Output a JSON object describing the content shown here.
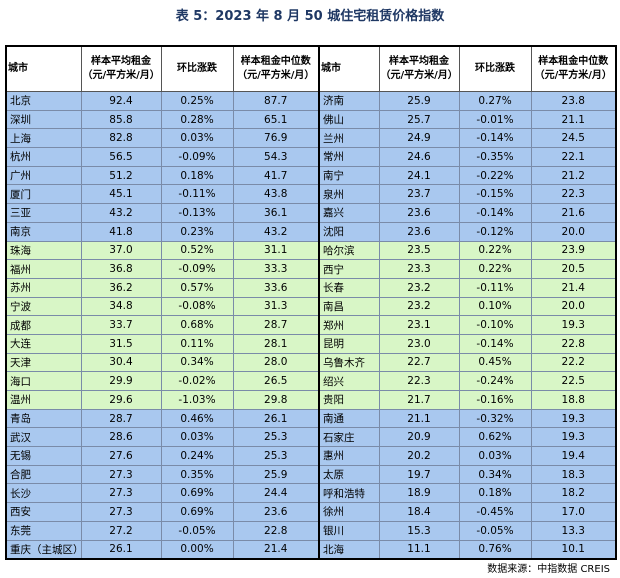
{
  "title": "表 5：2023 年 8 月 50 城住宅租赁价格指数",
  "table": {
    "header": [
      "城市",
      {
        "label": "样本平均租金",
        "unit": "（元/平方米/月）"
      },
      "环比涨跌",
      {
        "label": "样本租金中位数",
        "unit": "（元/平方米/月）"
      },
      "城市",
      {
        "label": "样本平均租金",
        "unit": "（元/平方米/月）"
      },
      "环比涨跌",
      {
        "label": "样本租金中位数",
        "unit": "（元/平方米/月）"
      }
    ],
    "rows": [
      [
        "北京",
        "92.4",
        "0.25%",
        "87.7",
        "济南",
        "25.9",
        "0.27%",
        "23.8"
      ],
      [
        "深圳",
        "85.8",
        "0.28%",
        "65.1",
        "佛山",
        "25.7",
        "-0.01%",
        "21.1"
      ],
      [
        "上海",
        "82.8",
        "0.03%",
        "76.9",
        "兰州",
        "24.9",
        "-0.14%",
        "24.5"
      ],
      [
        "杭州",
        "56.5",
        "-0.09%",
        "54.3",
        "常州",
        "24.6",
        "-0.35%",
        "22.1"
      ],
      [
        "广州",
        "51.2",
        "0.18%",
        "41.7",
        "南宁",
        "24.1",
        "-0.22%",
        "21.2"
      ],
      [
        "厦门",
        "45.1",
        "-0.11%",
        "43.8",
        "泉州",
        "23.7",
        "-0.15%",
        "22.3"
      ],
      [
        "三亚",
        "43.2",
        "-0.13%",
        "36.1",
        "嘉兴",
        "23.6",
        "-0.14%",
        "21.6"
      ],
      [
        "南京",
        "41.8",
        "0.23%",
        "43.2",
        "沈阳",
        "23.6",
        "-0.12%",
        "20.0"
      ],
      [
        "珠海",
        "37.0",
        "0.52%",
        "31.1",
        "哈尔滨",
        "23.5",
        "0.22%",
        "23.9"
      ],
      [
        "福州",
        "36.8",
        "-0.09%",
        "33.3",
        "西宁",
        "23.3",
        "0.22%",
        "20.5"
      ],
      [
        "苏州",
        "36.2",
        "0.57%",
        "33.6",
        "长春",
        "23.2",
        "-0.11%",
        "21.4"
      ],
      [
        "宁波",
        "34.8",
        "-0.08%",
        "31.3",
        "南昌",
        "23.2",
        "0.10%",
        "20.0"
      ],
      [
        "成都",
        "33.7",
        "0.68%",
        "28.7",
        "郑州",
        "23.1",
        "-0.10%",
        "19.3"
      ],
      [
        "大连",
        "31.5",
        "0.11%",
        "28.1",
        "昆明",
        "23.0",
        "-0.14%",
        "22.8"
      ],
      [
        "天津",
        "30.4",
        "0.34%",
        "28.0",
        "乌鲁木齐",
        "22.7",
        "0.45%",
        "22.2"
      ],
      [
        "海口",
        "29.9",
        "-0.02%",
        "26.5",
        "绍兴",
        "22.3",
        "-0.24%",
        "22.5"
      ],
      [
        "温州",
        "29.6",
        "-1.03%",
        "29.8",
        "贵阳",
        "21.7",
        "-0.16%",
        "18.8"
      ],
      [
        "青岛",
        "28.7",
        "0.46%",
        "26.1",
        "南通",
        "21.1",
        "-0.32%",
        "19.3"
      ],
      [
        "武汉",
        "28.6",
        "0.03%",
        "25.3",
        "石家庄",
        "20.9",
        "0.62%",
        "19.3"
      ],
      [
        "无锡",
        "27.6",
        "0.24%",
        "25.3",
        "惠州",
        "20.2",
        "0.03%",
        "19.4"
      ],
      [
        "合肥",
        "27.3",
        "0.35%",
        "25.9",
        "太原",
        "19.7",
        "0.34%",
        "18.3"
      ],
      [
        "长沙",
        "27.3",
        "0.69%",
        "24.4",
        "呼和浩特",
        "18.9",
        "0.18%",
        "18.2"
      ],
      [
        "西安",
        "27.3",
        "0.69%",
        "23.6",
        "徐州",
        "18.4",
        "-0.45%",
        "17.0"
      ],
      [
        "东莞",
        "27.2",
        "-0.05%",
        "22.8",
        "银川",
        "15.3",
        "-0.05%",
        "13.3"
      ],
      [
        "重庆（主城区）",
        "26.1",
        "0.00%",
        "21.4",
        "北海",
        "11.1",
        "0.76%",
        "10.1"
      ]
    ]
  },
  "source": "数据来源：中指数据 CREIS"
}
